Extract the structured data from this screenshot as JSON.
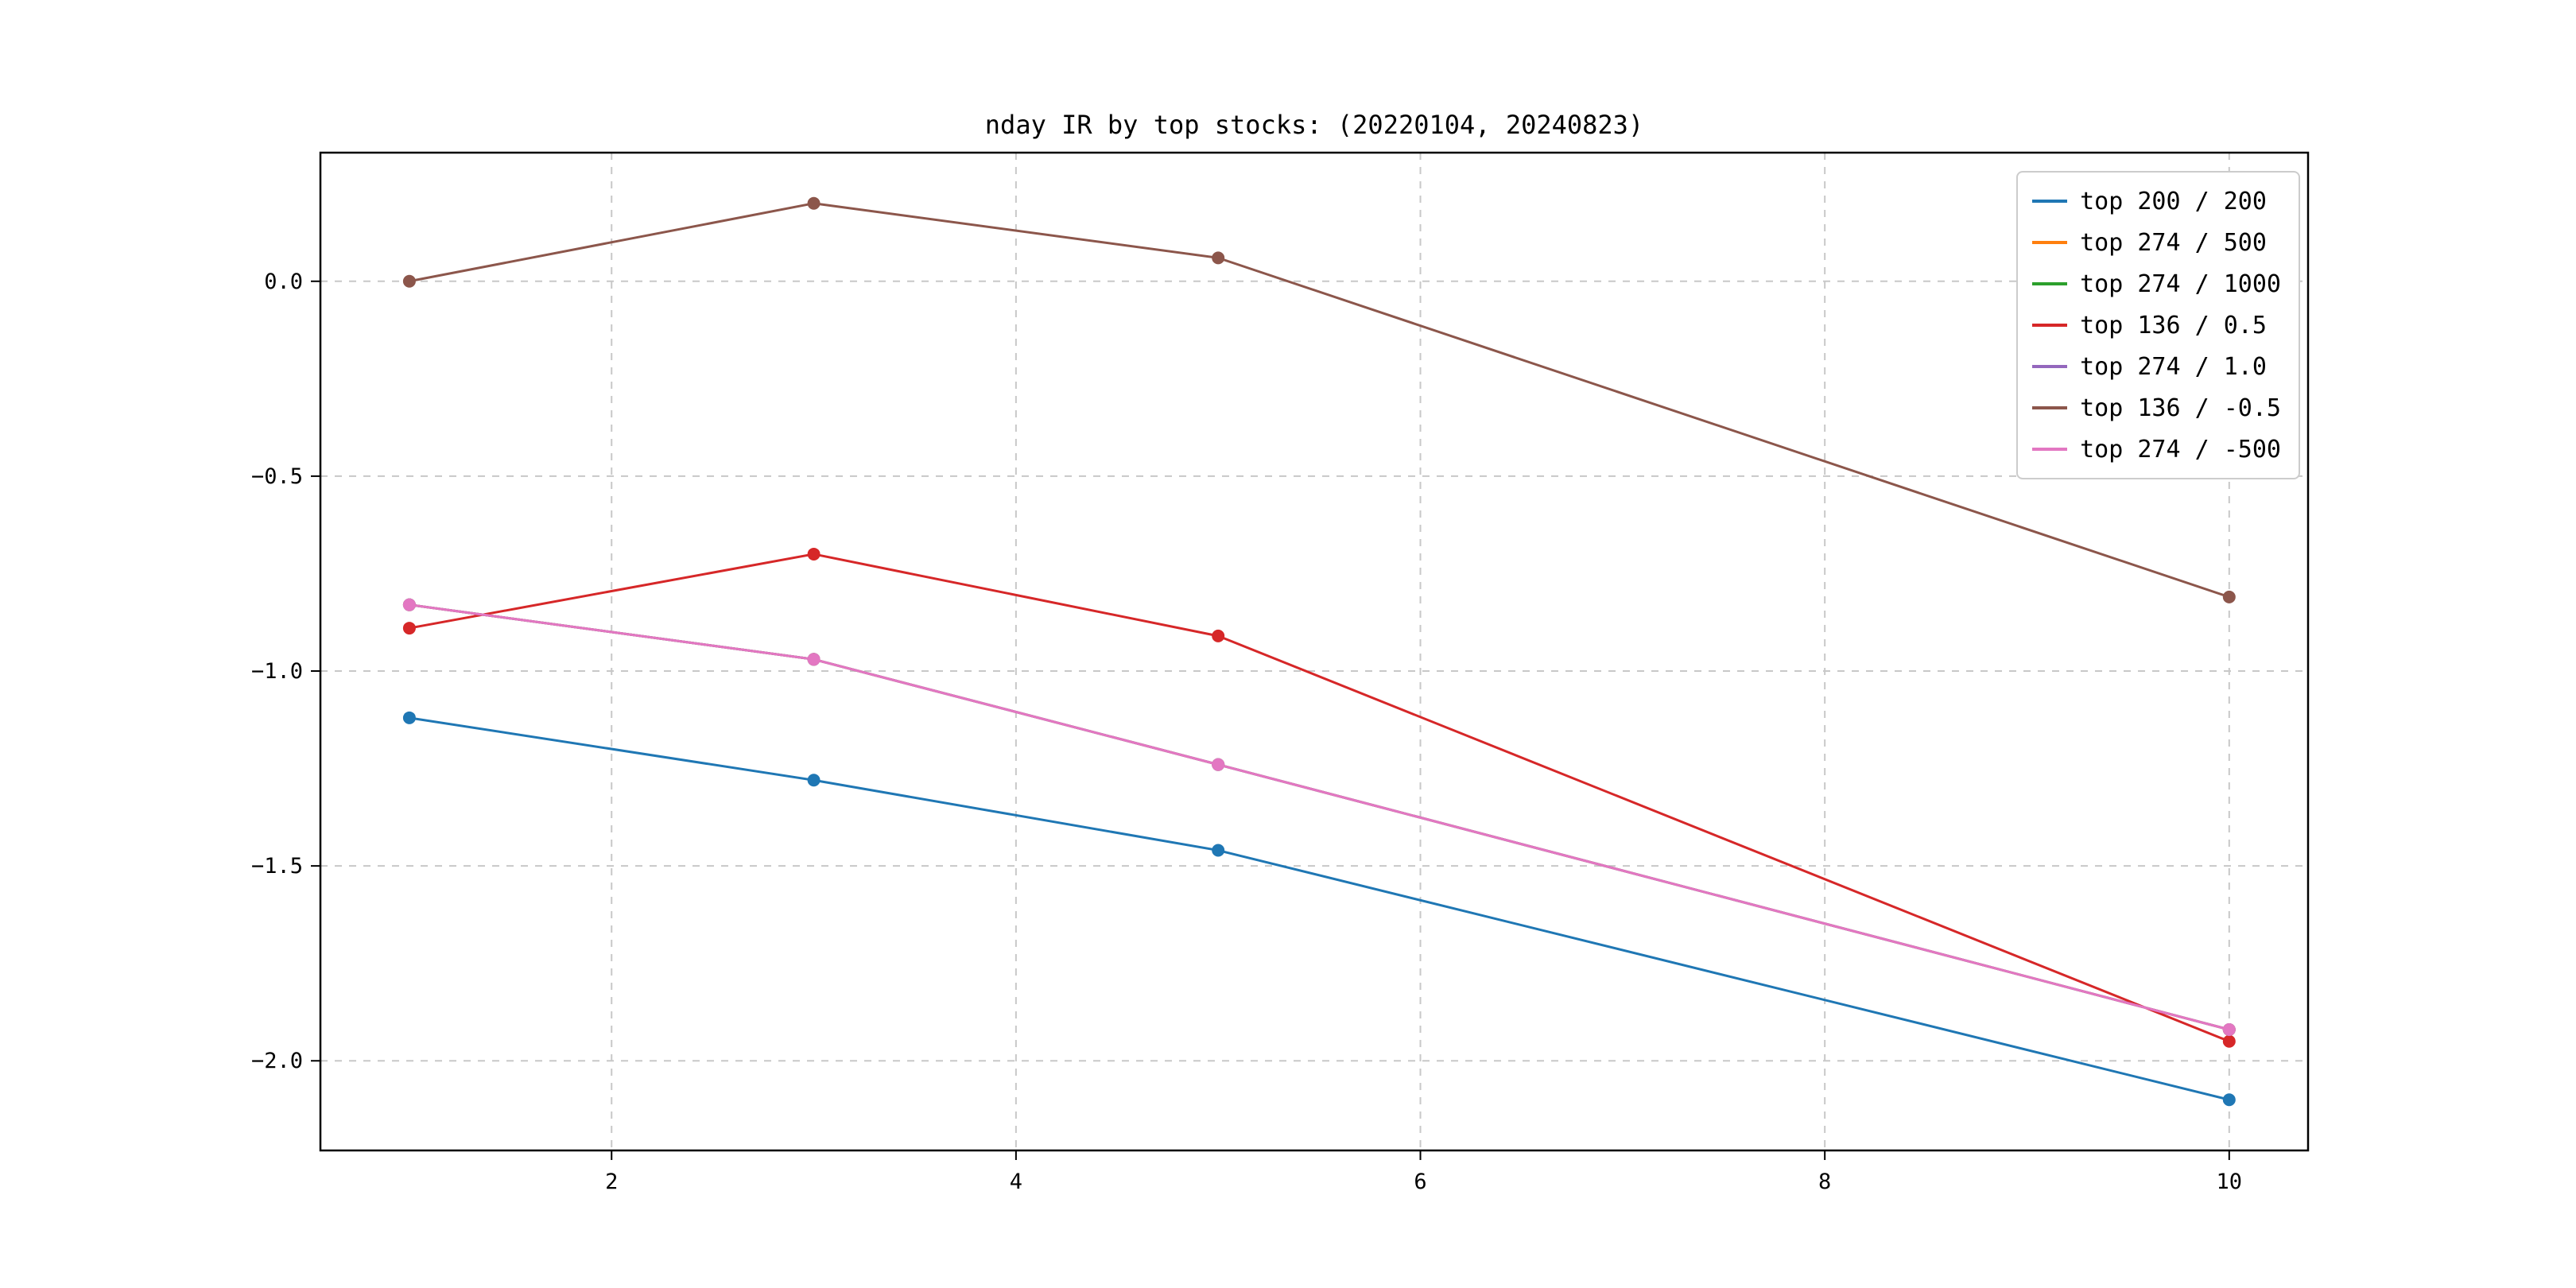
{
  "chart_data": {
    "type": "line",
    "title": "nday IR by top stocks: (20220104, 20240823)",
    "x": [
      1,
      3,
      5,
      10
    ],
    "series": [
      {
        "name": "top 200 / 200",
        "color": "#1f77b4",
        "values": [
          -1.12,
          -1.28,
          -1.46,
          -2.1
        ]
      },
      {
        "name": "top 274 / 500",
        "color": "#ff7f0e",
        "values": [
          -0.83,
          -0.97,
          -1.24,
          -1.92
        ]
      },
      {
        "name": "top 274 / 1000",
        "color": "#2ca02c",
        "values": [
          -0.83,
          -0.97,
          -1.24,
          -1.92
        ]
      },
      {
        "name": "top 136 / 0.5",
        "color": "#d62728",
        "values": [
          -0.89,
          -0.7,
          -0.91,
          -1.95
        ]
      },
      {
        "name": "top 274 / 1.0",
        "color": "#9467bd",
        "values": [
          -0.83,
          -0.97,
          -1.24,
          -1.92
        ]
      },
      {
        "name": "top 136 / -0.5",
        "color": "#8c564b",
        "values": [
          0.0,
          0.2,
          0.06,
          -0.81
        ]
      },
      {
        "name": "top 274 / -500",
        "color": "#e377c2",
        "values": [
          -0.83,
          -0.97,
          -1.24,
          -1.92
        ]
      }
    ],
    "xlim": [
      0.56,
      10.39
    ],
    "ylim": [
      -2.23,
      0.33
    ],
    "x_ticks": [
      2,
      4,
      6,
      8,
      10
    ],
    "y_ticks": [
      0.0,
      -0.5,
      -1.0,
      -1.5,
      -2.0
    ],
    "grid": true,
    "grid_style": "dashed",
    "grid_color": "#c8c8c8",
    "legend_position": "upper right",
    "marker": "circle",
    "frame_color": "#000000"
  }
}
